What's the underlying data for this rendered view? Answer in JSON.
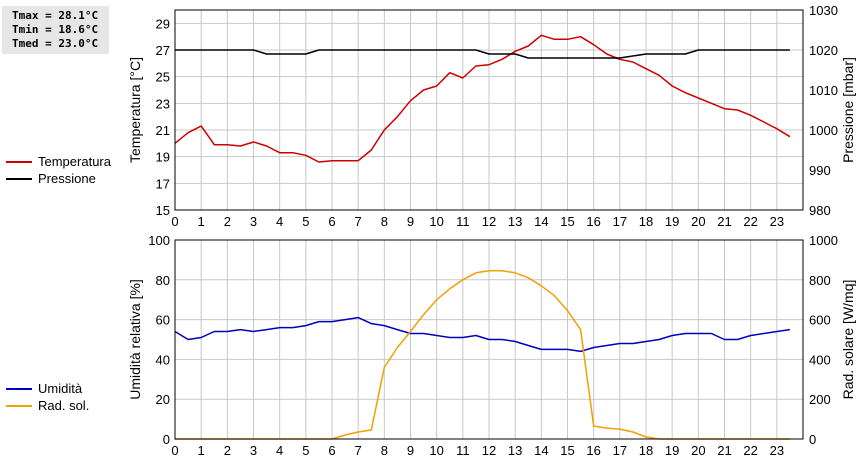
{
  "stats": {
    "tmax": "Tmax = 28.1°C",
    "tmin": "Tmin = 18.6°C",
    "tmed": "Tmed = 23.0°C"
  },
  "legend_top": [
    {
      "label": "Temperatura",
      "color": "#cc0000"
    },
    {
      "label": "Pressione",
      "color": "#000000"
    }
  ],
  "legend_bottom": [
    {
      "label": "Umidità",
      "color": "#0000bb"
    },
    {
      "label": "Rad. sol.",
      "color": "#f0a000"
    }
  ],
  "chart_data": [
    {
      "type": "line",
      "ylabel": "Temperatura [°C]",
      "ylabel_right": "Pressione [mbar]",
      "xlim": [
        0,
        24
      ],
      "ylim": [
        15,
        30
      ],
      "ylim_right": [
        980,
        1030
      ],
      "x_ticks": [
        "0",
        "1",
        "2",
        "3",
        "4",
        "5",
        "6",
        "7",
        "8",
        "9",
        "10",
        "11",
        "12",
        "13",
        "14",
        "15",
        "16",
        "17",
        "18",
        "19",
        "20",
        "21",
        "22",
        "23"
      ],
      "y_ticks": [
        "15",
        "17",
        "19",
        "21",
        "23",
        "25",
        "27",
        "29"
      ],
      "y_ticks_right": [
        "980",
        "990",
        "1000",
        "1010",
        "1020",
        "1030"
      ],
      "grid": true,
      "series": [
        {
          "name": "Temperatura",
          "color": "#cc0000",
          "axis": "left",
          "x": [
            0,
            0.5,
            1,
            1.5,
            2,
            2.5,
            3,
            3.5,
            4,
            4.5,
            5,
            5.5,
            6,
            6.5,
            7,
            7.5,
            8,
            8.5,
            9,
            9.5,
            10,
            10.5,
            11,
            11.5,
            12,
            12.5,
            13,
            13.5,
            14,
            14.5,
            15,
            15.5,
            16,
            16.5,
            17,
            17.5,
            18,
            18.5,
            19,
            19.5,
            20,
            20.5,
            21,
            21.5,
            22,
            22.5,
            23,
            23.5
          ],
          "y": [
            20.0,
            20.8,
            21.3,
            19.9,
            19.9,
            19.8,
            20.1,
            19.8,
            19.3,
            19.3,
            19.1,
            18.6,
            18.7,
            18.7,
            18.7,
            19.5,
            21.0,
            22.0,
            23.2,
            24.0,
            24.3,
            25.3,
            24.9,
            25.8,
            25.9,
            26.3,
            26.9,
            27.3,
            28.1,
            27.8,
            27.8,
            28.0,
            27.4,
            26.7,
            26.3,
            26.1,
            25.6,
            25.1,
            24.3,
            23.8,
            23.4,
            23.0,
            22.6,
            22.5,
            22.1,
            21.6,
            21.1,
            20.5
          ]
        },
        {
          "name": "Pressione",
          "color": "#000000",
          "axis": "right",
          "x": [
            0,
            3,
            3.5,
            5,
            5.5,
            11.5,
            12,
            13,
            13.5,
            17,
            18,
            19.5,
            20,
            23.5
          ],
          "y": [
            1020,
            1020,
            1019,
            1019,
            1020,
            1020,
            1019,
            1019,
            1018,
            1018,
            1019,
            1019,
            1020,
            1020
          ]
        }
      ]
    },
    {
      "type": "line",
      "ylabel": "Umidità relativa [%]",
      "ylabel_right": "Rad. solare [W/mq]",
      "xlim": [
        0,
        24
      ],
      "ylim": [
        0,
        100
      ],
      "ylim_right": [
        0,
        1000
      ],
      "x_ticks": [
        "0",
        "1",
        "2",
        "3",
        "4",
        "5",
        "6",
        "7",
        "8",
        "9",
        "10",
        "11",
        "12",
        "13",
        "14",
        "15",
        "16",
        "17",
        "18",
        "19",
        "20",
        "21",
        "22",
        "23"
      ],
      "y_ticks": [
        "0",
        "20",
        "40",
        "60",
        "80",
        "100"
      ],
      "y_ticks_right": [
        "0",
        "200",
        "400",
        "600",
        "800",
        "1000"
      ],
      "grid": true,
      "series": [
        {
          "name": "Umidità",
          "color": "#0000bb",
          "axis": "left",
          "x": [
            0,
            0.5,
            1,
            1.5,
            2,
            2.5,
            3,
            3.5,
            4,
            4.5,
            5,
            5.5,
            6,
            6.5,
            7,
            7.5,
            8,
            8.5,
            9,
            9.5,
            10,
            10.5,
            11,
            11.5,
            12,
            12.5,
            13,
            13.5,
            14,
            14.5,
            15,
            15.5,
            16,
            16.5,
            17,
            17.5,
            18,
            18.5,
            19,
            19.5,
            20,
            20.5,
            21,
            21.5,
            22,
            22.5,
            23,
            23.5
          ],
          "y": [
            54,
            50,
            51,
            54,
            54,
            55,
            54,
            55,
            56,
            56,
            57,
            59,
            59,
            60,
            61,
            58,
            57,
            55,
            53,
            53,
            52,
            51,
            51,
            52,
            50,
            50,
            49,
            47,
            45,
            45,
            45,
            44,
            46,
            47,
            48,
            48,
            49,
            50,
            52,
            53,
            53,
            53,
            50,
            50,
            52,
            53,
            54,
            55
          ]
        },
        {
          "name": "Rad. sol.",
          "color": "#f0a000",
          "axis": "right",
          "x": [
            0,
            0.5,
            1,
            1.5,
            2,
            2.5,
            3,
            3.5,
            4,
            4.5,
            5,
            5.5,
            6,
            6.5,
            7,
            7.5,
            8,
            8.5,
            9,
            9.5,
            10,
            10.5,
            11,
            11.5,
            12,
            12.5,
            13,
            13.5,
            14,
            14.5,
            15,
            15.5,
            16,
            16.5,
            17,
            17.5,
            18,
            18.5,
            19,
            19.5,
            20,
            20.5,
            21,
            21.5,
            22,
            22.5,
            23,
            23.5
          ],
          "y": [
            0,
            0,
            0,
            0,
            0,
            0,
            0,
            0,
            0,
            0,
            0,
            0,
            0,
            20,
            35,
            45,
            360,
            460,
            540,
            625,
            700,
            755,
            800,
            835,
            845,
            845,
            835,
            810,
            770,
            720,
            645,
            550,
            65,
            55,
            50,
            35,
            10,
            0,
            0,
            0,
            0,
            0,
            0,
            0,
            0,
            0,
            0,
            0
          ]
        }
      ]
    }
  ]
}
